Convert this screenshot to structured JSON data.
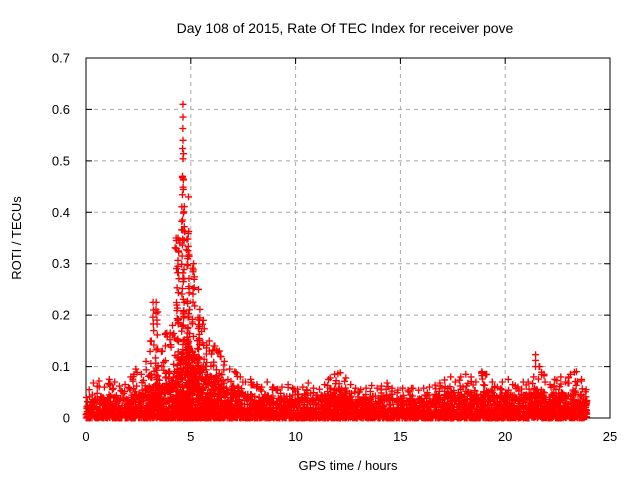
{
  "chart_data": {
    "type": "scatter",
    "title": "Day 108 of 2015, Rate Of TEC Index for receiver pove",
    "xlabel": "GPS time / hours",
    "ylabel": "ROTI / TECUs",
    "xlim": [
      0,
      25
    ],
    "ylim": [
      0,
      0.7
    ],
    "x_ticks": {
      "values": [
        0,
        5,
        10,
        15,
        20,
        25
      ],
      "labels": [
        "0",
        "5",
        "10",
        "15",
        "20",
        "25"
      ]
    },
    "y_ticks": {
      "values": [
        0,
        0.1,
        0.2,
        0.3,
        0.4,
        0.5,
        0.6,
        0.7
      ],
      "labels": [
        "0",
        "0.1",
        "0.2",
        "0.3",
        "0.4",
        "0.5",
        "0.6",
        "0.7"
      ]
    },
    "grid": {
      "on": true,
      "color": "#a8a8a8",
      "dash": "4 4"
    },
    "marker": {
      "shape": "plus",
      "size": 7,
      "color": "#ff0000"
    },
    "border_color": "#000000",
    "data_end_hour": 23.9,
    "envelope": {
      "bin_hours": 0.25,
      "start_hour": 0,
      "note": "per-bin [dense_band_top, max_value] in TECUs read from plot",
      "bins": [
        [
          0.03,
          0.055
        ],
        [
          0.032,
          0.068
        ],
        [
          0.035,
          0.072
        ],
        [
          0.033,
          0.06
        ],
        [
          0.042,
          0.075
        ],
        [
          0.04,
          0.07
        ],
        [
          0.038,
          0.062
        ],
        [
          0.038,
          0.065
        ],
        [
          0.042,
          0.08
        ],
        [
          0.045,
          0.095
        ],
        [
          0.045,
          0.085
        ],
        [
          0.05,
          0.11
        ],
        [
          0.055,
          0.15
        ],
        [
          0.06,
          0.225
        ],
        [
          0.055,
          0.13
        ],
        [
          0.06,
          0.165
        ],
        [
          0.065,
          0.18
        ],
        [
          0.08,
          0.35
        ],
        [
          0.11,
          0.47
        ],
        [
          0.13,
          0.43
        ],
        [
          0.115,
          0.3
        ],
        [
          0.1,
          0.25
        ],
        [
          0.085,
          0.19
        ],
        [
          0.075,
          0.15
        ],
        [
          0.068,
          0.14
        ],
        [
          0.072,
          0.13
        ],
        [
          0.058,
          0.11
        ],
        [
          0.052,
          0.095
        ],
        [
          0.048,
          0.09
        ],
        [
          0.048,
          0.08
        ],
        [
          0.044,
          0.07
        ],
        [
          0.044,
          0.075
        ],
        [
          0.043,
          0.065
        ],
        [
          0.04,
          0.06
        ],
        [
          0.043,
          0.07
        ],
        [
          0.04,
          0.06
        ],
        [
          0.038,
          0.056
        ],
        [
          0.038,
          0.06
        ],
        [
          0.042,
          0.065
        ],
        [
          0.038,
          0.058
        ],
        [
          0.038,
          0.056
        ],
        [
          0.04,
          0.06
        ],
        [
          0.042,
          0.068
        ],
        [
          0.038,
          0.058
        ],
        [
          0.038,
          0.056
        ],
        [
          0.042,
          0.065
        ],
        [
          0.048,
          0.078
        ],
        [
          0.052,
          0.085
        ],
        [
          0.052,
          0.088
        ],
        [
          0.048,
          0.078
        ],
        [
          0.042,
          0.065
        ],
        [
          0.038,
          0.058
        ],
        [
          0.038,
          0.055
        ],
        [
          0.038,
          0.058
        ],
        [
          0.042,
          0.063
        ],
        [
          0.038,
          0.058
        ],
        [
          0.038,
          0.062
        ],
        [
          0.042,
          0.068
        ],
        [
          0.038,
          0.058
        ],
        [
          0.036,
          0.054
        ],
        [
          0.038,
          0.058
        ],
        [
          0.036,
          0.054
        ],
        [
          0.038,
          0.058
        ],
        [
          0.036,
          0.054
        ],
        [
          0.038,
          0.058
        ],
        [
          0.038,
          0.06
        ],
        [
          0.042,
          0.064
        ],
        [
          0.042,
          0.068
        ],
        [
          0.044,
          0.074
        ],
        [
          0.048,
          0.08
        ],
        [
          0.044,
          0.07
        ],
        [
          0.048,
          0.08
        ],
        [
          0.05,
          0.085
        ],
        [
          0.048,
          0.08
        ],
        [
          0.044,
          0.07
        ],
        [
          0.05,
          0.09
        ],
        [
          0.05,
          0.085
        ],
        [
          0.044,
          0.07
        ],
        [
          0.04,
          0.06
        ],
        [
          0.044,
          0.07
        ],
        [
          0.048,
          0.075
        ],
        [
          0.044,
          0.065
        ],
        [
          0.04,
          0.06
        ],
        [
          0.044,
          0.07
        ],
        [
          0.044,
          0.07
        ],
        [
          0.048,
          0.08
        ],
        [
          0.046,
          0.1
        ],
        [
          0.044,
          0.085
        ],
        [
          0.04,
          0.065
        ],
        [
          0.044,
          0.075
        ],
        [
          0.048,
          0.08
        ],
        [
          0.044,
          0.07
        ],
        [
          0.044,
          0.085
        ],
        [
          0.048,
          0.09
        ],
        [
          0.044,
          0.075
        ],
        [
          0.034,
          0.055
        ]
      ]
    },
    "outlier_points": [
      [
        4.63,
        0.61
      ],
      [
        4.63,
        0.585
      ],
      [
        4.62,
        0.563
      ],
      [
        4.63,
        0.54
      ],
      [
        4.61,
        0.524
      ],
      [
        4.65,
        0.514
      ],
      [
        4.63,
        0.504
      ],
      [
        4.6,
        0.468
      ],
      [
        4.64,
        0.465
      ],
      [
        4.6,
        0.434
      ],
      [
        4.69,
        0.411
      ],
      [
        4.67,
        0.401
      ],
      [
        4.57,
        0.382
      ],
      [
        4.69,
        0.372
      ],
      [
        4.71,
        0.362
      ],
      [
        4.3,
        0.35
      ],
      [
        4.48,
        0.34
      ],
      [
        4.25,
        0.331
      ],
      [
        4.42,
        0.325
      ],
      [
        4.79,
        0.327
      ],
      [
        4.85,
        0.31
      ],
      [
        5.12,
        0.288
      ],
      [
        3.2,
        0.225
      ],
      [
        3.22,
        0.21
      ],
      [
        3.19,
        0.196
      ],
      [
        3.21,
        0.183
      ],
      [
        3.23,
        0.17
      ],
      [
        6.15,
        0.14
      ],
      [
        6.3,
        0.128
      ],
      [
        21.45,
        0.123
      ],
      [
        21.45,
        0.112
      ],
      [
        21.45,
        0.1
      ],
      [
        12.02,
        0.086
      ],
      [
        18.9,
        0.088
      ],
      [
        23.3,
        0.089
      ]
    ]
  }
}
